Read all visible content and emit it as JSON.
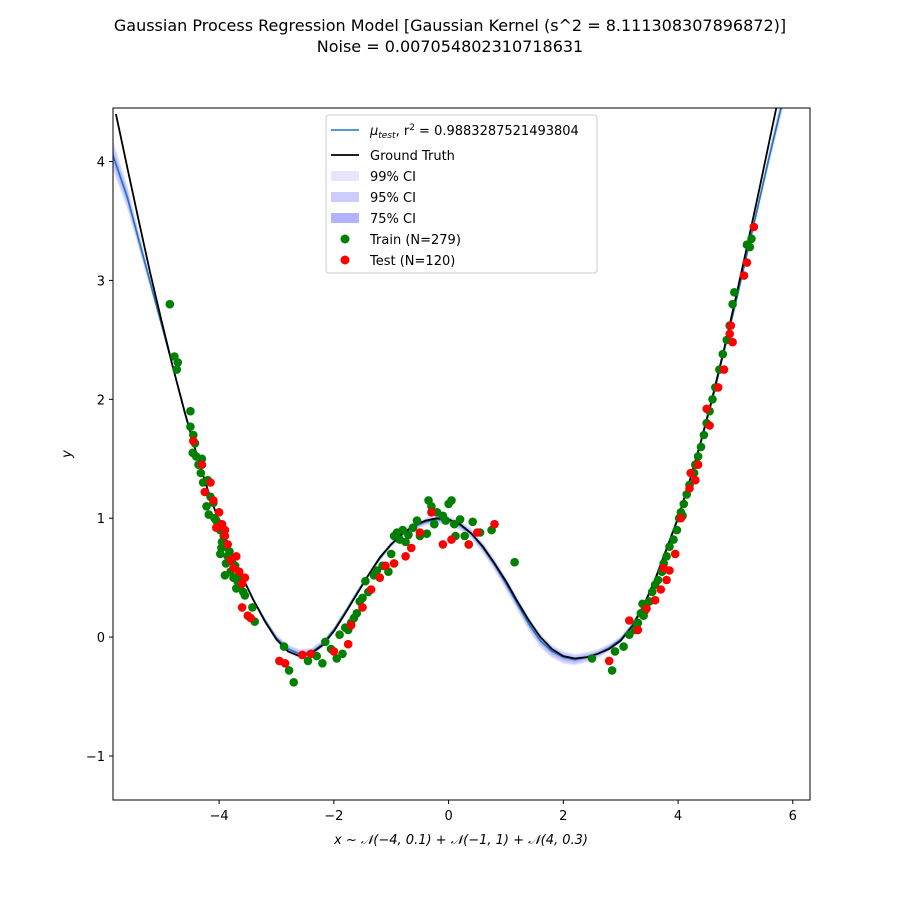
{
  "chart_data": {
    "type": "scatter",
    "title": "Gaussian Process Regression Model [Gaussian Kernel (s^2 = 8.111308307896872)]",
    "subtitle": "Noise = 0.007054802310718631",
    "xlabel": "x ~ 𝒩(−4, 0.1) + 𝒩(−1, 1) + 𝒩(4, 0.3)",
    "ylabel": "y",
    "xlim": [
      -5.85,
      6.3
    ],
    "ylim": [
      -1.37,
      4.45
    ],
    "x_ticks": [
      -4,
      -2,
      0,
      2,
      4,
      6
    ],
    "y_ticks": [
      -1,
      0,
      1,
      2,
      3,
      4
    ],
    "x_tick_labels": [
      "−4",
      "−2",
      "0",
      "2",
      "4",
      "6"
    ],
    "y_tick_labels": [
      "−1",
      "0",
      "1",
      "2",
      "3",
      "4"
    ],
    "grid": false,
    "legend_position": "top-center",
    "legend": {
      "mu_prefix": "μ",
      "mu_sub": "test",
      "mu_rest": ", r",
      "mu_sup": "2",
      "mu_value": " = 0.9883287521493804",
      "ground_truth": "Ground Truth",
      "ci99": "99% CI",
      "ci95": "95% CI",
      "ci75": "75% CI",
      "train": "Train (N=279)",
      "test": "Test (N=120)"
    },
    "colors": {
      "mean": "#1f77b4",
      "truth": "#000000",
      "ci99": "#e5e5ff",
      "ci95": "#ccccff",
      "ci75": "#b2b2ff",
      "train": "#008000",
      "test": "#ff0000"
    },
    "ground_truth_x": [
      -5.8,
      -5.6,
      -5.4,
      -5.2,
      -5.0,
      -4.8,
      -4.6,
      -4.4,
      -4.2,
      -4.0,
      -3.8,
      -3.6,
      -3.4,
      -3.2,
      -3.0,
      -2.8,
      -2.6,
      -2.4,
      -2.2,
      -2.0,
      -1.8,
      -1.6,
      -1.4,
      -1.2,
      -1.0,
      -0.8,
      -0.6,
      -0.4,
      -0.2,
      0.0,
      0.2,
      0.4,
      0.6,
      0.8,
      1.0,
      1.2,
      1.4,
      1.6,
      1.8,
      2.0,
      2.2,
      2.4,
      2.6,
      2.8,
      3.0,
      3.2,
      3.4,
      3.6,
      3.8,
      4.0,
      4.2,
      4.4,
      4.6,
      4.8,
      5.0,
      5.2,
      5.4,
      5.6,
      5.8,
      6.0,
      6.2
    ],
    "ground_truth_y": [
      4.4,
      3.95,
      3.5,
      3.06,
      2.65,
      2.26,
      1.89,
      1.55,
      1.24,
      0.97,
      0.72,
      0.51,
      0.31,
      0.13,
      -0.02,
      -0.12,
      -0.16,
      -0.14,
      -0.07,
      0.05,
      0.2,
      0.36,
      0.52,
      0.67,
      0.78,
      0.87,
      0.94,
      0.98,
      1.0,
      0.99,
      0.95,
      0.87,
      0.76,
      0.62,
      0.47,
      0.3,
      0.14,
      0.0,
      -0.1,
      -0.16,
      -0.18,
      -0.17,
      -0.14,
      -0.1,
      -0.03,
      0.09,
      0.26,
      0.48,
      0.74,
      1.0,
      1.31,
      1.65,
      2.02,
      2.42,
      2.84,
      3.28,
      3.73,
      4.19,
      4.65,
      5.1,
      5.55
    ],
    "mean_x": [
      -5.85,
      -5.6,
      -5.4,
      -5.2,
      -5.0,
      -4.8,
      -4.6,
      -4.4,
      -4.2,
      -4.0,
      -3.8,
      -3.6,
      -3.4,
      -3.2,
      -3.0,
      -2.8,
      -2.6,
      -2.4,
      -2.2,
      -2.0,
      -1.8,
      -1.6,
      -1.4,
      -1.2,
      -1.0,
      -0.8,
      -0.6,
      -0.4,
      -0.2,
      0.0,
      0.2,
      0.4,
      0.6,
      0.8,
      1.0,
      1.2,
      1.4,
      1.6,
      1.8,
      2.0,
      2.2,
      2.4,
      2.6,
      2.8,
      3.0,
      3.2,
      3.4,
      3.6,
      3.8,
      4.0,
      4.2,
      4.4,
      4.6,
      4.8,
      5.0,
      5.2,
      5.4,
      5.6,
      5.8,
      6.0,
      6.2
    ],
    "mean_y": [
      4.05,
      3.7,
      3.34,
      2.98,
      2.62,
      2.26,
      1.9,
      1.55,
      1.24,
      0.97,
      0.72,
      0.51,
      0.31,
      0.14,
      -0.01,
      -0.1,
      -0.14,
      -0.13,
      -0.06,
      0.06,
      0.21,
      0.37,
      0.52,
      0.66,
      0.78,
      0.87,
      0.93,
      0.97,
      0.99,
      0.98,
      0.94,
      0.87,
      0.75,
      0.61,
      0.45,
      0.28,
      0.11,
      -0.03,
      -0.12,
      -0.17,
      -0.19,
      -0.17,
      -0.14,
      -0.09,
      -0.02,
      0.1,
      0.27,
      0.49,
      0.75,
      1.01,
      1.31,
      1.64,
      2.0,
      2.4,
      2.8,
      3.22,
      3.64,
      4.06,
      4.46,
      4.85,
      5.2
    ],
    "mean_sd": [
      0.05,
      0.04,
      0.03,
      0.02,
      0.012,
      0.008,
      0.006,
      0.006,
      0.005,
      0.005,
      0.005,
      0.006,
      0.008,
      0.01,
      0.013,
      0.015,
      0.016,
      0.015,
      0.013,
      0.011,
      0.01,
      0.009,
      0.009,
      0.009,
      0.01,
      0.011,
      0.012,
      0.013,
      0.014,
      0.015,
      0.016,
      0.017,
      0.018,
      0.02,
      0.021,
      0.022,
      0.023,
      0.023,
      0.022,
      0.021,
      0.019,
      0.017,
      0.015,
      0.013,
      0.011,
      0.009,
      0.008,
      0.007,
      0.006,
      0.006,
      0.006,
      0.007,
      0.009,
      0.011,
      0.013,
      0.016,
      0.02,
      0.025,
      0.03,
      0.04,
      0.05
    ],
    "train": [
      [
        -4.86,
        2.8
      ],
      [
        -4.78,
        2.36
      ],
      [
        -4.72,
        2.31
      ],
      [
        -4.74,
        2.25
      ],
      [
        -4.5,
        1.9
      ],
      [
        -4.5,
        1.77
      ],
      [
        -4.45,
        1.7
      ],
      [
        -4.42,
        1.63
      ],
      [
        -4.46,
        1.55
      ],
      [
        -4.4,
        1.52
      ],
      [
        -4.36,
        1.45
      ],
      [
        -4.32,
        1.38
      ],
      [
        -4.28,
        1.3
      ],
      [
        -4.2,
        1.32
      ],
      [
        -4.15,
        1.18
      ],
      [
        -4.1,
        1.13
      ],
      [
        -4.22,
        1.1
      ],
      [
        -4.18,
        1.03
      ],
      [
        -4.05,
        0.98
      ],
      [
        -4.0,
        0.95
      ],
      [
        -3.98,
        0.9
      ],
      [
        -3.92,
        0.85
      ],
      [
        -3.95,
        0.8
      ],
      [
        -3.88,
        0.76
      ],
      [
        -3.82,
        0.72
      ],
      [
        -3.98,
        0.7
      ],
      [
        -3.85,
        0.68
      ],
      [
        -3.78,
        0.64
      ],
      [
        -3.72,
        0.6
      ],
      [
        -3.8,
        0.55
      ],
      [
        -3.9,
        0.52
      ],
      [
        -3.75,
        0.5
      ],
      [
        -3.68,
        0.47
      ],
      [
        -3.62,
        0.44
      ],
      [
        -3.7,
        0.41
      ],
      [
        -3.58,
        0.38
      ],
      [
        -3.55,
        0.35
      ],
      [
        -3.42,
        0.25
      ],
      [
        -3.38,
        0.13
      ],
      [
        -2.87,
        -0.08
      ],
      [
        -2.78,
        -0.28
      ],
      [
        -2.7,
        -0.38
      ],
      [
        -2.45,
        -0.2
      ],
      [
        -2.3,
        -0.16
      ],
      [
        -2.2,
        -0.22
      ],
      [
        -2.15,
        -0.04
      ],
      [
        -2.05,
        -0.1
      ],
      [
        -1.95,
        -0.18
      ],
      [
        -1.85,
        -0.14
      ],
      [
        -1.9,
        0.02
      ],
      [
        -1.8,
        0.08
      ],
      [
        -1.75,
        0.06
      ],
      [
        -1.7,
        0.12
      ],
      [
        -1.6,
        0.2
      ],
      [
        -1.55,
        0.3
      ],
      [
        -1.5,
        0.33
      ],
      [
        -1.45,
        0.47
      ],
      [
        -1.4,
        0.38
      ],
      [
        -1.3,
        0.52
      ],
      [
        -1.25,
        0.56
      ],
      [
        -1.15,
        0.6
      ],
      [
        -1.05,
        0.55
      ],
      [
        -1.0,
        0.7
      ],
      [
        -0.95,
        0.85
      ],
      [
        -0.9,
        0.88
      ],
      [
        -0.85,
        0.82
      ],
      [
        -0.8,
        0.9
      ],
      [
        -0.75,
        0.8
      ],
      [
        -0.7,
        0.86
      ],
      [
        -0.62,
        0.92
      ],
      [
        -0.55,
        0.98
      ],
      [
        -0.5,
        0.85
      ],
      [
        -0.38,
        0.87
      ],
      [
        -0.35,
        1.15
      ],
      [
        -0.3,
        1.1
      ],
      [
        -0.25,
        0.95
      ],
      [
        -0.2,
        1.05
      ],
      [
        -0.1,
        1.02
      ],
      [
        -0.05,
        0.98
      ],
      [
        0.0,
        1.12
      ],
      [
        0.05,
        1.15
      ],
      [
        0.1,
        0.95
      ],
      [
        0.12,
        0.85
      ],
      [
        0.2,
        0.99
      ],
      [
        0.28,
        0.85
      ],
      [
        0.35,
        0.78
      ],
      [
        0.42,
        0.97
      ],
      [
        0.55,
        0.88
      ],
      [
        0.75,
        0.9
      ],
      [
        1.15,
        0.63
      ],
      [
        2.5,
        -0.18
      ],
      [
        2.85,
        -0.28
      ],
      [
        2.9,
        -0.12
      ],
      [
        3.05,
        -0.08
      ],
      [
        3.15,
        0.02
      ],
      [
        3.25,
        0.06
      ],
      [
        3.3,
        0.12
      ],
      [
        3.35,
        0.2
      ],
      [
        3.38,
        0.28
      ],
      [
        3.42,
        0.22
      ],
      [
        3.5,
        0.3
      ],
      [
        3.55,
        0.38
      ],
      [
        3.6,
        0.44
      ],
      [
        3.65,
        0.48
      ],
      [
        3.72,
        0.55
      ],
      [
        3.75,
        0.62
      ],
      [
        3.8,
        0.68
      ],
      [
        3.85,
        0.76
      ],
      [
        3.92,
        0.82
      ],
      [
        3.98,
        0.9
      ],
      [
        4.02,
        1.0
      ],
      [
        4.05,
        1.05
      ],
      [
        4.1,
        1.12
      ],
      [
        4.15,
        1.2
      ],
      [
        4.2,
        1.28
      ],
      [
        4.28,
        1.38
      ],
      [
        4.35,
        1.52
      ],
      [
        4.4,
        1.6
      ],
      [
        4.45,
        1.7
      ],
      [
        4.5,
        1.8
      ],
      [
        4.55,
        1.9
      ],
      [
        4.6,
        2.0
      ],
      [
        4.65,
        2.1
      ],
      [
        4.72,
        2.25
      ],
      [
        4.78,
        2.38
      ],
      [
        4.85,
        2.5
      ],
      [
        4.9,
        2.62
      ],
      [
        4.95,
        2.8
      ],
      [
        4.98,
        2.9
      ],
      [
        5.2,
        3.3
      ],
      [
        5.25,
        3.28
      ],
      [
        5.28,
        3.35
      ],
      [
        3.28,
        0.1
      ],
      [
        3.4,
        0.18
      ],
      [
        4.08,
        1.02
      ],
      [
        4.3,
        1.45
      ],
      [
        -4.3,
        1.5
      ],
      [
        -4.08,
        1.0
      ],
      [
        -3.96,
        0.75
      ],
      [
        -3.88,
        0.62
      ],
      [
        -3.65,
        0.52
      ],
      [
        -1.65,
        0.16
      ]
    ],
    "test": [
      [
        -4.45,
        1.65
      ],
      [
        -4.3,
        1.45
      ],
      [
        -4.25,
        1.22
      ],
      [
        -4.15,
        1.3
      ],
      [
        -4.1,
        1.15
      ],
      [
        -4.0,
        1.05
      ],
      [
        -3.95,
        0.95
      ],
      [
        -3.9,
        0.85
      ],
      [
        -3.85,
        0.78
      ],
      [
        -3.8,
        0.65
      ],
      [
        -3.75,
        0.58
      ],
      [
        -3.7,
        0.68
      ],
      [
        -3.65,
        0.55
      ],
      [
        -3.6,
        0.45
      ],
      [
        -3.55,
        0.5
      ],
      [
        -3.5,
        0.18
      ],
      [
        -3.45,
        0.16
      ],
      [
        -3.6,
        0.25
      ],
      [
        -2.95,
        -0.2
      ],
      [
        -2.85,
        -0.22
      ],
      [
        -2.55,
        -0.15
      ],
      [
        -2.4,
        -0.14
      ],
      [
        -2.0,
        -0.12
      ],
      [
        -1.75,
        -0.06
      ],
      [
        -1.7,
        0.1
      ],
      [
        -1.5,
        0.25
      ],
      [
        -1.35,
        0.4
      ],
      [
        -1.2,
        0.5
      ],
      [
        -1.1,
        0.6
      ],
      [
        -0.95,
        0.62
      ],
      [
        -0.75,
        0.68
      ],
      [
        -0.65,
        0.75
      ],
      [
        -0.5,
        0.88
      ],
      [
        -0.3,
        1.05
      ],
      [
        -0.1,
        0.78
      ],
      [
        0.05,
        0.82
      ],
      [
        0.35,
        0.78
      ],
      [
        0.5,
        0.88
      ],
      [
        0.8,
        0.95
      ],
      [
        2.8,
        -0.2
      ],
      [
        3.15,
        0.14
      ],
      [
        3.3,
        0.06
      ],
      [
        3.45,
        0.24
      ],
      [
        3.6,
        0.31
      ],
      [
        3.7,
        0.4
      ],
      [
        3.8,
        0.48
      ],
      [
        3.85,
        0.56
      ],
      [
        3.95,
        0.7
      ],
      [
        4.05,
        1.0
      ],
      [
        4.2,
        1.25
      ],
      [
        4.3,
        1.32
      ],
      [
        4.35,
        1.45
      ],
      [
        4.5,
        1.92
      ],
      [
        4.55,
        1.78
      ],
      [
        4.7,
        2.1
      ],
      [
        4.8,
        2.25
      ],
      [
        4.9,
        2.55
      ],
      [
        4.95,
        2.48
      ],
      [
        5.15,
        3.04
      ],
      [
        5.2,
        3.15
      ],
      [
        5.32,
        3.45
      ],
      [
        4.92,
        2.62
      ],
      [
        4.22,
        1.38
      ],
      [
        3.75,
        0.58
      ],
      [
        -3.9,
        0.9
      ],
      [
        -4.05,
        0.92
      ]
    ]
  }
}
